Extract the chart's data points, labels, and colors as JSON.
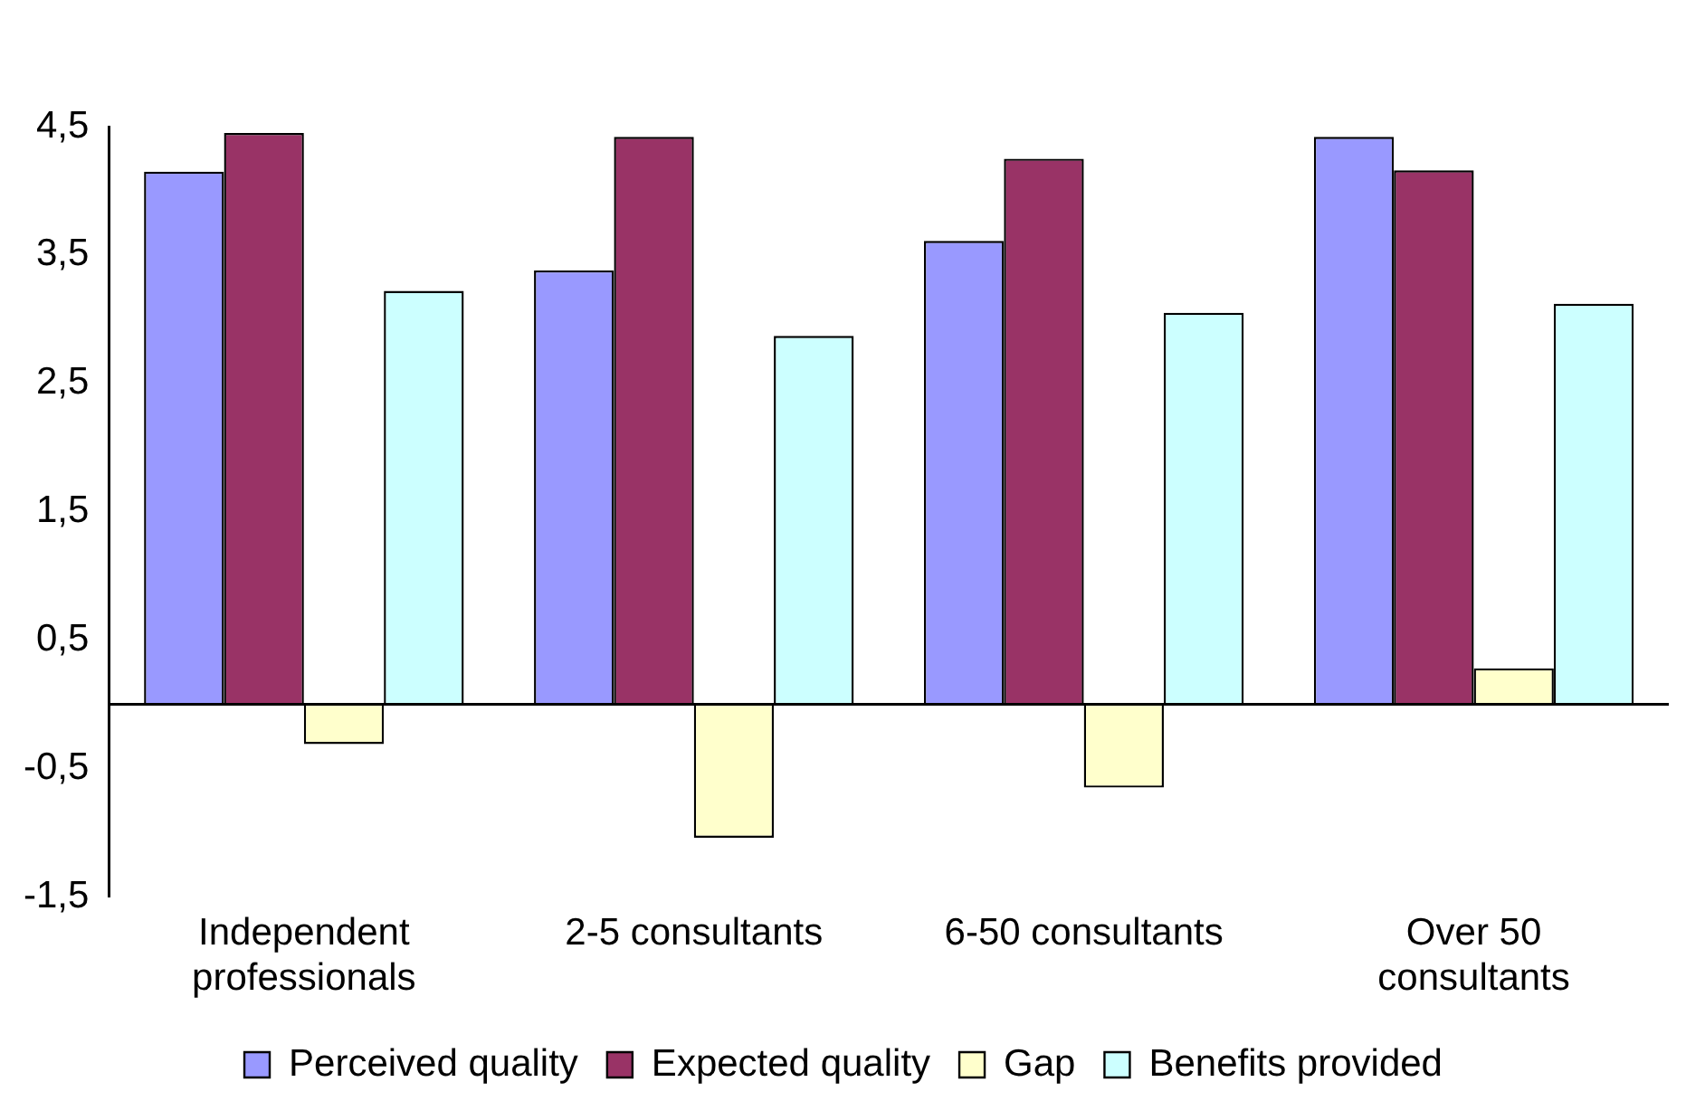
{
  "chart_data": {
    "type": "bar",
    "categories": [
      "Independent professionals",
      "2-5 consultants",
      "6-50 consultants",
      "Over 50 consultants"
    ],
    "series": [
      {
        "name": "Perceived quality",
        "color": "#9999ff",
        "values": [
          4.15,
          3.38,
          3.61,
          4.42
        ]
      },
      {
        "name": "Expected quality",
        "color": "#993366",
        "values": [
          4.45,
          4.42,
          4.25,
          4.16
        ]
      },
      {
        "name": "Gap",
        "color": "#ffffcc",
        "values": [
          -0.31,
          -1.04,
          -0.65,
          0.28
        ]
      },
      {
        "name": "Benefits provided",
        "color": "#ccffff",
        "values": [
          3.22,
          2.87,
          3.05,
          3.12
        ]
      }
    ],
    "ylim": [
      -1.5,
      4.5
    ],
    "yticks": [
      {
        "value": -1.5,
        "label": "-1,5"
      },
      {
        "value": -0.5,
        "label": "-0,5"
      },
      {
        "value": 0.5,
        "label": "0,5"
      },
      {
        "value": 1.5,
        "label": "1,5"
      },
      {
        "value": 2.5,
        "label": "2,5"
      },
      {
        "value": 3.5,
        "label": "3,5"
      },
      {
        "value": 4.5,
        "label": "4,5"
      }
    ],
    "grid": false,
    "legend": "bottom"
  }
}
